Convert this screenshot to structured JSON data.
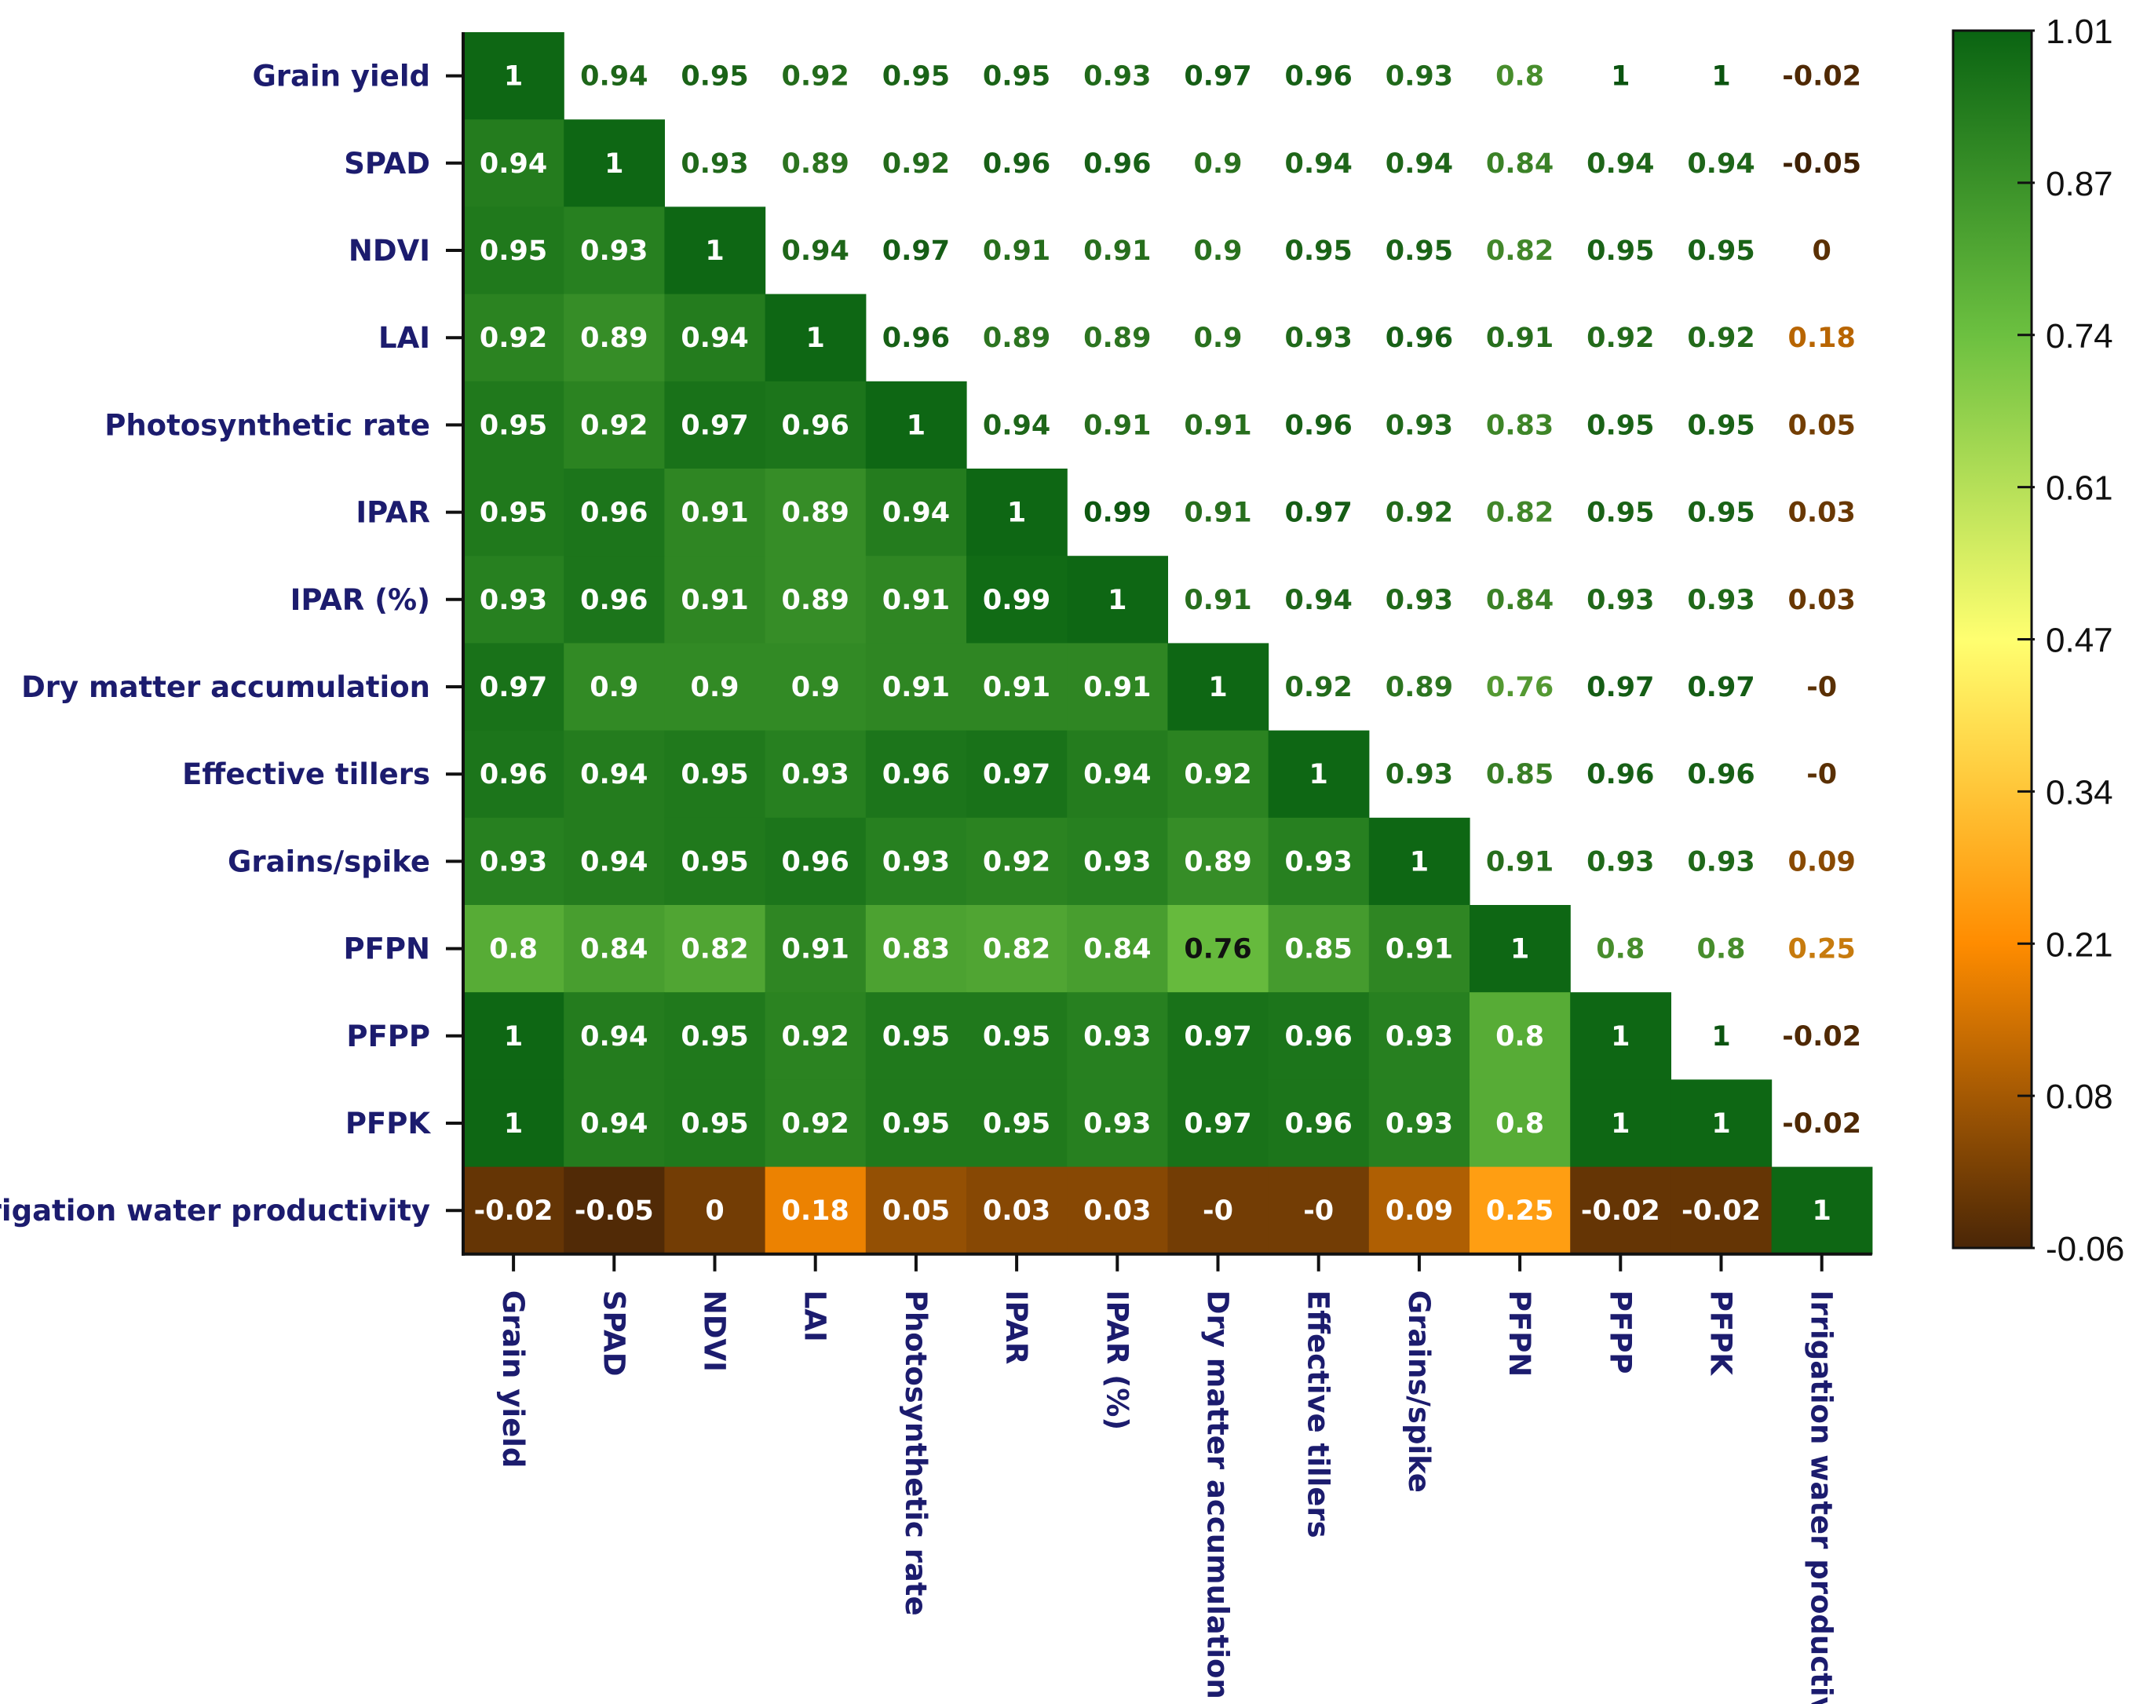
{
  "chart_data": {
    "type": "heatmap",
    "title": "",
    "xlabel": "",
    "ylabel": "",
    "layout": "lower-triangle-colored, upper-triangle-text",
    "variables": [
      "Grain yield",
      "SPAD",
      "NDVI",
      "LAI",
      "Photosynthetic rate",
      "IPAR",
      "IPAR (%)",
      "Dry matter accumulation",
      "Effective tillers",
      "Grains/spike",
      "PFPN",
      "PFPP",
      "PFPK",
      "Irrigation water productivity"
    ],
    "matrix": [
      [
        1,
        0.94,
        0.95,
        0.92,
        0.95,
        0.95,
        0.93,
        0.97,
        0.96,
        0.93,
        0.8,
        1,
        1,
        -0.02
      ],
      [
        0.94,
        1,
        0.93,
        0.89,
        0.92,
        0.96,
        0.96,
        0.9,
        0.94,
        0.94,
        0.84,
        0.94,
        0.94,
        -0.05
      ],
      [
        0.95,
        0.93,
        1,
        0.94,
        0.97,
        0.91,
        0.91,
        0.9,
        0.95,
        0.95,
        0.82,
        0.95,
        0.95,
        0
      ],
      [
        0.92,
        0.89,
        0.94,
        1,
        0.96,
        0.89,
        0.89,
        0.9,
        0.93,
        0.96,
        0.91,
        0.92,
        0.92,
        0.18
      ],
      [
        0.95,
        0.92,
        0.97,
        0.96,
        1,
        0.94,
        0.91,
        0.91,
        0.96,
        0.93,
        0.83,
        0.95,
        0.95,
        0.05
      ],
      [
        0.95,
        0.96,
        0.91,
        0.89,
        0.94,
        1,
        0.99,
        0.91,
        0.97,
        0.92,
        0.82,
        0.95,
        0.95,
        0.03
      ],
      [
        0.93,
        0.96,
        0.91,
        0.89,
        0.91,
        0.99,
        1,
        0.91,
        0.94,
        0.93,
        0.84,
        0.93,
        0.93,
        0.03
      ],
      [
        0.97,
        0.9,
        0.9,
        0.9,
        0.91,
        0.91,
        0.91,
        1,
        0.92,
        0.89,
        0.76,
        0.97,
        0.97,
        0
      ],
      [
        0.96,
        0.94,
        0.95,
        0.93,
        0.96,
        0.97,
        0.94,
        0.92,
        1,
        0.93,
        0.85,
        0.96,
        0.96,
        0
      ],
      [
        0.93,
        0.94,
        0.95,
        0.96,
        0.93,
        0.92,
        0.93,
        0.89,
        0.93,
        1,
        0.91,
        0.93,
        0.93,
        0.09
      ],
      [
        0.8,
        0.84,
        0.82,
        0.91,
        0.83,
        0.82,
        0.84,
        0.76,
        0.85,
        0.91,
        1,
        0.8,
        0.8,
        0.25
      ],
      [
        1,
        0.94,
        0.95,
        0.92,
        0.95,
        0.95,
        0.93,
        0.97,
        0.96,
        0.93,
        0.8,
        1,
        1,
        -0.02
      ],
      [
        1,
        0.94,
        0.95,
        0.92,
        0.95,
        0.95,
        0.93,
        0.97,
        0.96,
        0.93,
        0.8,
        1,
        1,
        -0.02
      ],
      [
        -0.02,
        -0.05,
        0,
        0.18,
        0.05,
        0.03,
        0.03,
        0,
        0,
        0.09,
        0.25,
        -0.02,
        -0.02,
        1
      ]
    ],
    "labels": [
      [
        "1",
        "0.94",
        "0.95",
        "0.92",
        "0.95",
        "0.95",
        "0.93",
        "0.97",
        "0.96",
        "0.93",
        "0.8",
        "1",
        "1",
        "-0.02"
      ],
      [
        "0.94",
        "1",
        "0.93",
        "0.89",
        "0.92",
        "0.96",
        "0.96",
        "0.9",
        "0.94",
        "0.94",
        "0.84",
        "0.94",
        "0.94",
        "-0.05"
      ],
      [
        "0.95",
        "0.93",
        "1",
        "0.94",
        "0.97",
        "0.91",
        "0.91",
        "0.9",
        "0.95",
        "0.95",
        "0.82",
        "0.95",
        "0.95",
        "0"
      ],
      [
        "0.92",
        "0.89",
        "0.94",
        "1",
        "0.96",
        "0.89",
        "0.89",
        "0.9",
        "0.93",
        "0.96",
        "0.91",
        "0.92",
        "0.92",
        "0.18"
      ],
      [
        "0.95",
        "0.92",
        "0.97",
        "0.96",
        "1",
        "0.94",
        "0.91",
        "0.91",
        "0.96",
        "0.93",
        "0.83",
        "0.95",
        "0.95",
        "0.05"
      ],
      [
        "0.95",
        "0.96",
        "0.91",
        "0.89",
        "0.94",
        "1",
        "0.99",
        "0.91",
        "0.97",
        "0.92",
        "0.82",
        "0.95",
        "0.95",
        "0.03"
      ],
      [
        "0.93",
        "0.96",
        "0.91",
        "0.89",
        "0.91",
        "0.99",
        "1",
        "0.91",
        "0.94",
        "0.93",
        "0.84",
        "0.93",
        "0.93",
        "0.03"
      ],
      [
        "0.97",
        "0.9",
        "0.9",
        "0.9",
        "0.91",
        "0.91",
        "0.91",
        "1",
        "0.92",
        "0.89",
        "0.76",
        "0.97",
        "0.97",
        "-0"
      ],
      [
        "0.96",
        "0.94",
        "0.95",
        "0.93",
        "0.96",
        "0.97",
        "0.94",
        "0.92",
        "1",
        "0.93",
        "0.85",
        "0.96",
        "0.96",
        "-0"
      ],
      [
        "0.93",
        "0.94",
        "0.95",
        "0.96",
        "0.93",
        "0.92",
        "0.93",
        "0.89",
        "0.93",
        "1",
        "0.91",
        "0.93",
        "0.93",
        "0.09"
      ],
      [
        "0.8",
        "0.84",
        "0.82",
        "0.91",
        "0.83",
        "0.82",
        "0.84",
        "0.76",
        "0.85",
        "0.91",
        "1",
        "0.8",
        "0.8",
        "0.25"
      ],
      [
        "1",
        "0.94",
        "0.95",
        "0.92",
        "0.95",
        "0.95",
        "0.93",
        "0.97",
        "0.96",
        "0.93",
        "0.8",
        "1",
        "1",
        "-0.02"
      ],
      [
        "1",
        "0.94",
        "0.95",
        "0.92",
        "0.95",
        "0.95",
        "0.93",
        "0.97",
        "0.96",
        "0.93",
        "0.8",
        "1",
        "1",
        "-0.02"
      ],
      [
        "-0.02",
        "-0.05",
        "0",
        "0.18",
        "0.05",
        "0.03",
        "0.03",
        "-0",
        "-0",
        "0.09",
        "0.25",
        "-0.02",
        "-0.02",
        "1"
      ]
    ],
    "colorbar": {
      "range": [
        -0.06,
        1.01
      ],
      "ticks": [
        "1.01",
        "0.87",
        "0.74",
        "0.61",
        "0.47",
        "0.34",
        "0.21",
        "0.08",
        "-0.06"
      ],
      "colors": [
        "#4a2606",
        "#ff8c00",
        "#ffff70",
        "#6cc040",
        "#0a6412"
      ]
    },
    "grid": false,
    "legend": "right"
  }
}
